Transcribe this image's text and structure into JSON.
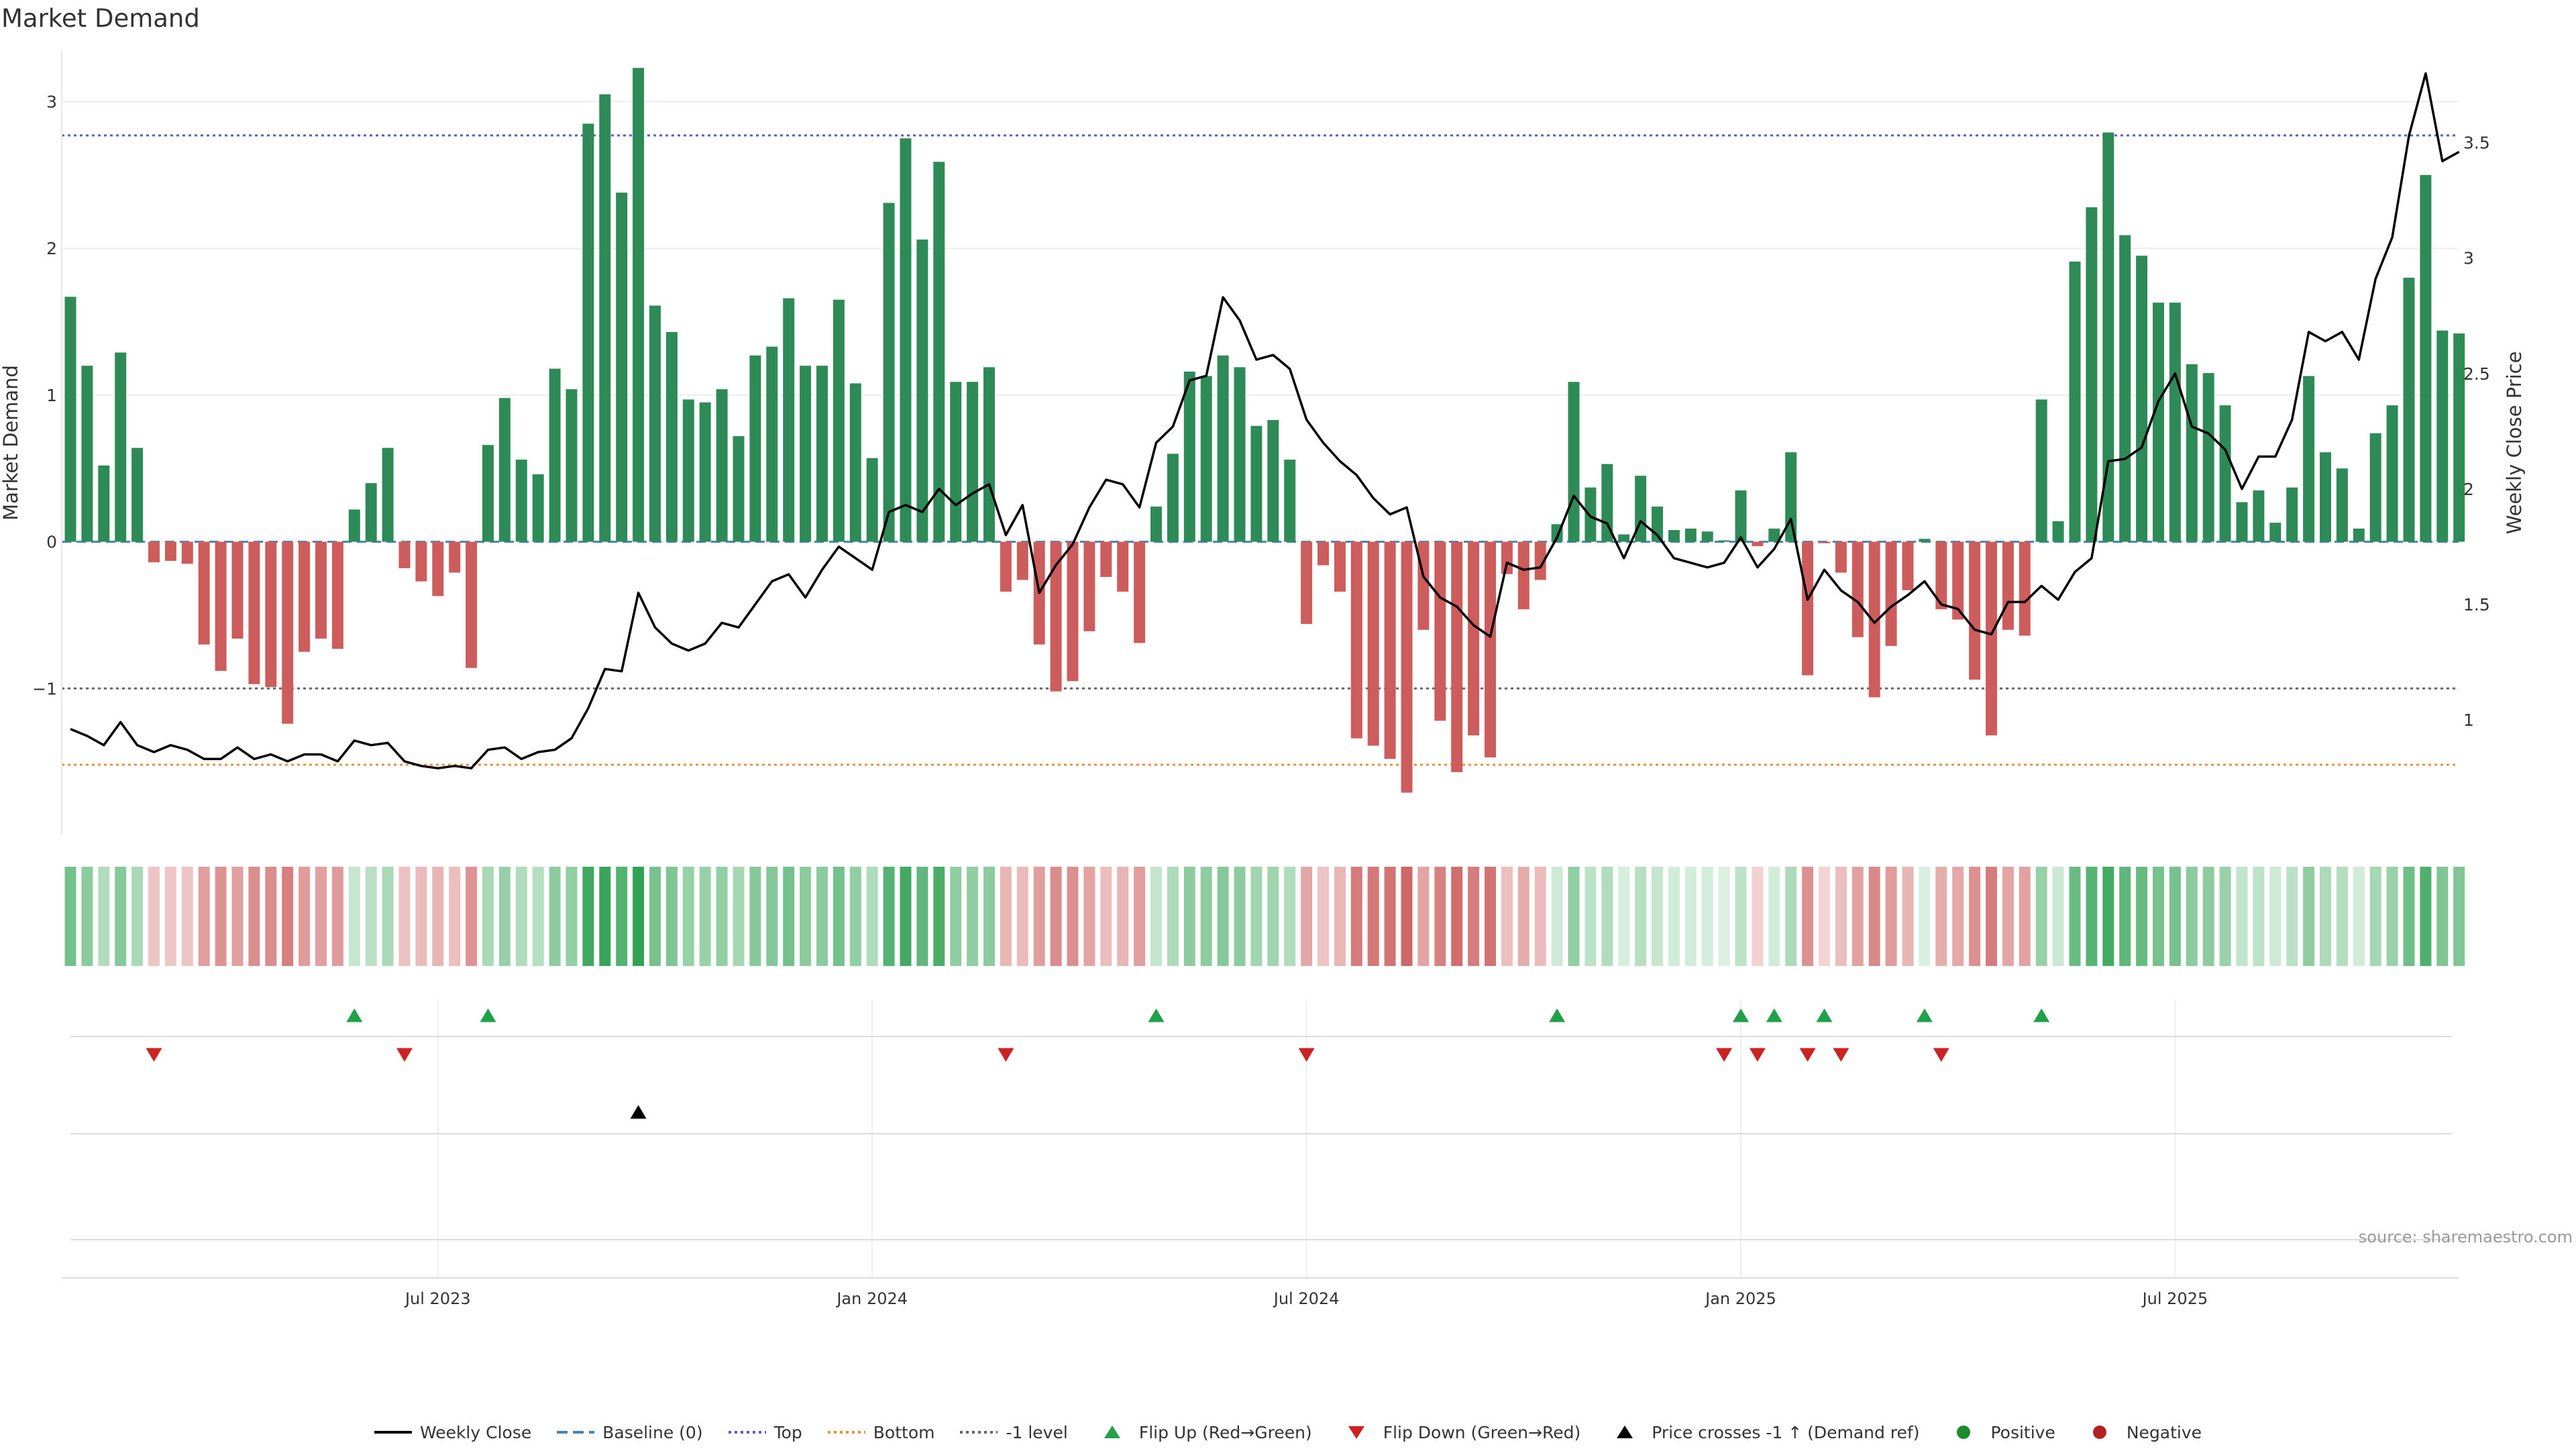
{
  "chart_data": {
    "type": "bar",
    "title": "Market Demand",
    "ylabel_left": "Market Demand",
    "ylabel_right": "Weekly Close Price",
    "source": "source: sharemaestro.com",
    "ylim_left": [
      -2.0,
      3.35
    ],
    "ylim_right": [
      0.5,
      3.9
    ],
    "yticks_left": [
      {
        "v": 3,
        "label": "3"
      },
      {
        "v": 2,
        "label": "2"
      },
      {
        "v": 1,
        "label": "1"
      },
      {
        "v": 0,
        "label": "0"
      },
      {
        "v": -1,
        "label": "−1"
      }
    ],
    "yticks_right": [
      {
        "v": 3.5,
        "label": "3.5"
      },
      {
        "v": 3,
        "label": "3"
      },
      {
        "v": 2.5,
        "label": "2.5"
      },
      {
        "v": 2,
        "label": "2"
      },
      {
        "v": 1.5,
        "label": "1.5"
      },
      {
        "v": 1,
        "label": "1"
      }
    ],
    "xticks": [
      {
        "i": 22,
        "label": "Jul 2023"
      },
      {
        "i": 48,
        "label": "Jan 2024"
      },
      {
        "i": 74,
        "label": "Jul 2024"
      },
      {
        "i": 100,
        "label": "Jan 2025"
      },
      {
        "i": 126,
        "label": "Jul 2025"
      }
    ],
    "levels": {
      "top": 2.77,
      "bottom": -1.52,
      "minus_one": -1.0,
      "baseline": 0
    },
    "colors": {
      "positive": "#2e8b57",
      "negative": "#cd5c5c",
      "line": "#000000",
      "baseline": "#4682b4",
      "top": "#5b5bc8",
      "bottom": "#e69138",
      "minus_one": "#666666",
      "flip_up": "#21a04a",
      "flip_down": "#cc2222",
      "cross": "#000000",
      "pos_dot": "#1e8a2e",
      "neg_dot": "#b22222"
    },
    "grid": true,
    "legend_position": "bottom-center",
    "demand": [
      1.67,
      1.2,
      0.52,
      1.29,
      0.64,
      -0.14,
      -0.13,
      -0.15,
      -0.7,
      -0.88,
      -0.66,
      -0.97,
      -0.99,
      -1.24,
      -0.75,
      -0.66,
      -0.73,
      0.22,
      0.4,
      0.64,
      -0.18,
      -0.27,
      -0.37,
      -0.21,
      -0.86,
      0.66,
      0.98,
      0.56,
      0.46,
      1.18,
      1.04,
      2.85,
      3.05,
      2.38,
      3.23,
      1.61,
      1.43,
      0.97,
      0.95,
      1.04,
      0.72,
      1.27,
      1.33,
      1.66,
      1.2,
      1.2,
      1.65,
      1.08,
      0.57,
      2.31,
      2.75,
      2.06,
      2.59,
      1.09,
      1.09,
      1.19,
      -0.34,
      -0.26,
      -0.7,
      -1.02,
      -0.95,
      -0.61,
      -0.24,
      -0.34,
      -0.69,
      0.24,
      0.6,
      1.16,
      1.13,
      1.27,
      1.19,
      0.79,
      0.83,
      0.56,
      -0.56,
      -0.16,
      -0.34,
      -1.34,
      -1.39,
      -1.48,
      -1.71,
      -0.6,
      -1.22,
      -1.57,
      -1.32,
      -1.47,
      -0.22,
      -0.46,
      -0.26,
      0.12,
      1.09,
      0.37,
      0.53,
      0.05,
      0.45,
      0.24,
      0.08,
      0.09,
      0.07,
      0.01,
      0.35,
      -0.03,
      0.09,
      0.61,
      -0.91,
      -0.01,
      -0.21,
      -0.65,
      -1.06,
      -0.71,
      -0.33,
      0.02,
      -0.46,
      -0.53,
      -0.94,
      -1.32,
      -0.6,
      -0.64,
      0.97,
      0.14,
      1.91,
      2.28,
      2.79,
      2.09,
      1.95,
      1.63,
      1.63,
      1.21,
      1.15,
      0.93,
      0.27,
      0.35,
      0.13,
      0.37,
      1.13,
      0.61,
      0.5,
      0.09,
      0.74,
      0.93,
      1.8,
      2.5,
      1.44,
      1.42
    ],
    "close": [
      0.96,
      0.93,
      0.89,
      0.99,
      0.89,
      0.86,
      0.89,
      0.87,
      0.83,
      0.83,
      0.88,
      0.83,
      0.85,
      0.82,
      0.85,
      0.85,
      0.82,
      0.91,
      0.89,
      0.9,
      0.82,
      0.8,
      0.79,
      0.8,
      0.79,
      0.87,
      0.88,
      0.83,
      0.86,
      0.87,
      0.92,
      1.05,
      1.22,
      1.21,
      1.55,
      1.4,
      1.33,
      1.3,
      1.33,
      1.42,
      1.4,
      1.5,
      1.6,
      1.63,
      1.53,
      1.65,
      1.75,
      1.7,
      1.65,
      1.9,
      1.93,
      1.9,
      2.0,
      1.93,
      1.98,
      2.02,
      1.8,
      1.93,
      1.55,
      1.67,
      1.76,
      1.92,
      2.04,
      2.02,
      1.92,
      2.2,
      2.27,
      2.47,
      2.49,
      2.83,
      2.73,
      2.56,
      2.58,
      2.52,
      2.3,
      2.2,
      2.12,
      2.06,
      1.96,
      1.89,
      1.92,
      1.62,
      1.53,
      1.49,
      1.41,
      1.36,
      1.68,
      1.65,
      1.66,
      1.79,
      1.97,
      1.88,
      1.85,
      1.7,
      1.86,
      1.8,
      1.7,
      1.68,
      1.66,
      1.68,
      1.79,
      1.66,
      1.74,
      1.87,
      1.52,
      1.65,
      1.56,
      1.51,
      1.42,
      1.49,
      1.54,
      1.6,
      1.5,
      1.48,
      1.39,
      1.37,
      1.51,
      1.51,
      1.58,
      1.52,
      1.64,
      1.7,
      2.12,
      2.13,
      2.18,
      2.38,
      2.5,
      2.27,
      2.24,
      2.17,
      2.0,
      2.14,
      2.14,
      2.3,
      2.68,
      2.64,
      2.68,
      2.56,
      2.91,
      3.09,
      3.53,
      3.8,
      3.42,
      3.46
    ],
    "flip_up": [
      17,
      25,
      65,
      89,
      100,
      102,
      105,
      111,
      118
    ],
    "flip_down": [
      5,
      20,
      56,
      74,
      99,
      101,
      104,
      106,
      112
    ],
    "price_cross": [
      34
    ],
    "legend": [
      {
        "type": "line",
        "label": "Weekly Close",
        "color": "#000000"
      },
      {
        "type": "dashed",
        "label": "Baseline (0)",
        "color": "#4682b4"
      },
      {
        "type": "dotted",
        "label": "Top",
        "color": "#5b5bc8"
      },
      {
        "type": "dotted",
        "label": "Bottom",
        "color": "#e69138"
      },
      {
        "type": "dotted",
        "label": "-1 level",
        "color": "#666666"
      },
      {
        "type": "tri-up",
        "label": "Flip Up (Red→Green)",
        "color": "#21a04a"
      },
      {
        "type": "tri-down",
        "label": "Flip Down (Green→Red)",
        "color": "#cc2222"
      },
      {
        "type": "tri-up",
        "label": "Price crosses -1 ↑ (Demand ref)",
        "color": "#000000"
      },
      {
        "type": "dot",
        "label": "Positive",
        "color": "#1e8a2e"
      },
      {
        "type": "dot",
        "label": "Negative",
        "color": "#b22222"
      }
    ]
  }
}
